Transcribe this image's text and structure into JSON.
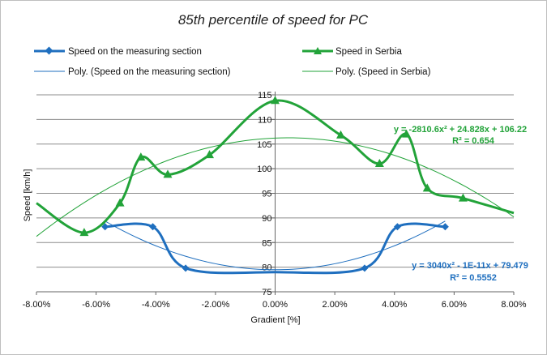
{
  "chart_data": {
    "type": "line",
    "title": "85th percentile of speed for PC",
    "xlabel": "Gradient [%]",
    "ylabel": "Speed [km/h]",
    "xlim": [
      -0.08,
      0.08
    ],
    "ylim": [
      75,
      115
    ],
    "x_ticks": [
      "-8.00%",
      "-6.00%",
      "-4.00%",
      "-2.00%",
      "0.00%",
      "2.00%",
      "4.00%",
      "6.00%",
      "8.00%"
    ],
    "y_ticks": [
      "75",
      "80",
      "85",
      "90",
      "95",
      "100",
      "105",
      "110",
      "115"
    ],
    "grid": "horizontal",
    "legend_placement": "top",
    "series": [
      {
        "name": "Speed on the measuring section",
        "color": "#1f6fbf",
        "marker": "diamond",
        "smooth": true,
        "x": [
          -0.057,
          -0.041,
          -0.03,
          0.0,
          0.03,
          0.041,
          0.057
        ],
        "y": [
          88.2,
          88.2,
          79.8,
          79.0,
          79.8,
          88.2,
          88.2
        ]
      },
      {
        "name": "Speed in Serbia",
        "color": "#22a339",
        "marker": "triangle",
        "smooth": true,
        "x": [
          -0.08,
          -0.064,
          -0.052,
          -0.045,
          -0.036,
          -0.022,
          0.0,
          0.022,
          0.035,
          0.044,
          0.051,
          0.063,
          0.08
        ],
        "y": [
          93.0,
          87.0,
          93.0,
          102.3,
          98.8,
          102.8,
          113.8,
          106.8,
          101.0,
          107.0,
          96.0,
          94.0,
          91.0
        ]
      }
    ],
    "trendlines": [
      {
        "name": "Poly. (Speed on the measuring section)",
        "color": "#1f6fbf",
        "coefficients": [
          3040,
          -1e-11,
          79.479
        ],
        "x_range": [
          -0.057,
          0.057
        ],
        "equation": "y = 3040x² - 1E-11x + 79.479",
        "r2": "R² = 0.5552"
      },
      {
        "name": "Poly. (Speed in Serbia)",
        "color": "#22a339",
        "coefficients": [
          -2810.6,
          24.828,
          106.22
        ],
        "x_range": [
          -0.08,
          0.08
        ],
        "equation": "y = -2810.6x² + 24.828x + 106.22",
        "r2": "R² = 0.654"
      }
    ]
  }
}
